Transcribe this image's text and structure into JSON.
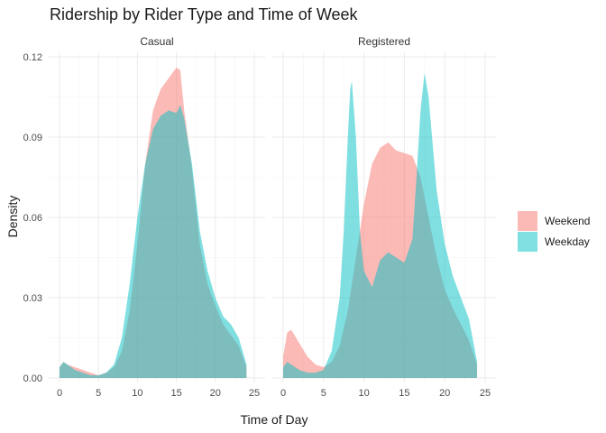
{
  "chart_data": {
    "type": "area",
    "title": "Ridership by Rider Type and Time of Week",
    "xlabel": "Time of Day",
    "ylabel": "Density",
    "xlim": [
      0,
      25
    ],
    "ylim": [
      0,
      0.12
    ],
    "x_ticks": [
      "0",
      "5",
      "10",
      "15",
      "20",
      "25"
    ],
    "y_ticks": [
      "0.00",
      "0.03",
      "0.06",
      "0.09",
      "0.12"
    ],
    "legend_position": "right",
    "grid": true,
    "facets": [
      {
        "name": "Casual",
        "series": [
          {
            "name": "Weekend",
            "color": "#F8766D",
            "x": [
              0,
              0.5,
              1,
              2,
              3,
              4,
              5,
              6,
              7,
              8,
              9,
              10,
              11,
              12,
              13,
              14,
              15,
              15.5,
              16,
              17,
              18,
              19,
              20,
              21,
              22,
              23,
              24
            ],
            "y": [
              0.004,
              0.006,
              0.005,
              0.004,
              0.003,
              0.002,
              0.001,
              0.002,
              0.004,
              0.01,
              0.025,
              0.05,
              0.08,
              0.1,
              0.108,
              0.112,
              0.116,
              0.115,
              0.1,
              0.078,
              0.05,
              0.035,
              0.027,
              0.02,
              0.016,
              0.012,
              0.004
            ]
          },
          {
            "name": "Weekday",
            "color": "#00BFC4",
            "x": [
              0,
              0.5,
              1,
              2,
              3,
              4,
              5,
              6,
              7,
              8,
              9,
              10,
              11,
              12,
              13,
              14,
              15,
              15.5,
              16,
              17,
              18,
              19,
              20,
              21,
              22,
              23,
              24
            ],
            "y": [
              0.004,
              0.006,
              0.005,
              0.003,
              0.002,
              0.001,
              0.001,
              0.002,
              0.005,
              0.015,
              0.035,
              0.06,
              0.08,
              0.093,
              0.098,
              0.1,
              0.099,
              0.102,
              0.097,
              0.08,
              0.055,
              0.04,
              0.03,
              0.023,
              0.02,
              0.015,
              0.005
            ]
          }
        ]
      },
      {
        "name": "Registered",
        "series": [
          {
            "name": "Weekend",
            "color": "#F8766D",
            "x": [
              0,
              0.5,
              1,
              2,
              3,
              4,
              5,
              6,
              7,
              8,
              9,
              10,
              11,
              12,
              13,
              14,
              15,
              16,
              17,
              18,
              19,
              20,
              21,
              22,
              23,
              24
            ],
            "y": [
              0.008,
              0.017,
              0.018,
              0.013,
              0.008,
              0.005,
              0.004,
              0.006,
              0.012,
              0.025,
              0.045,
              0.065,
              0.08,
              0.086,
              0.088,
              0.085,
              0.084,
              0.083,
              0.075,
              0.06,
              0.045,
              0.033,
              0.026,
              0.02,
              0.014,
              0.005
            ]
          },
          {
            "name": "Weekday",
            "color": "#00BFC4",
            "x": [
              0,
              0.5,
              1,
              2,
              3,
              4,
              5,
              6,
              7,
              7.5,
              8,
              8.3,
              8.5,
              9,
              9.5,
              10,
              11,
              12,
              13,
              14,
              15,
              16,
              16.5,
              17,
              17.5,
              18,
              19,
              20,
              21,
              22,
              23,
              24
            ],
            "y": [
              0.004,
              0.006,
              0.005,
              0.003,
              0.002,
              0.002,
              0.003,
              0.01,
              0.03,
              0.055,
              0.09,
              0.108,
              0.111,
              0.09,
              0.055,
              0.04,
              0.034,
              0.044,
              0.047,
              0.045,
              0.043,
              0.052,
              0.075,
              0.1,
              0.114,
              0.105,
              0.07,
              0.05,
              0.038,
              0.03,
              0.022,
              0.006
            ]
          }
        ]
      }
    ]
  }
}
